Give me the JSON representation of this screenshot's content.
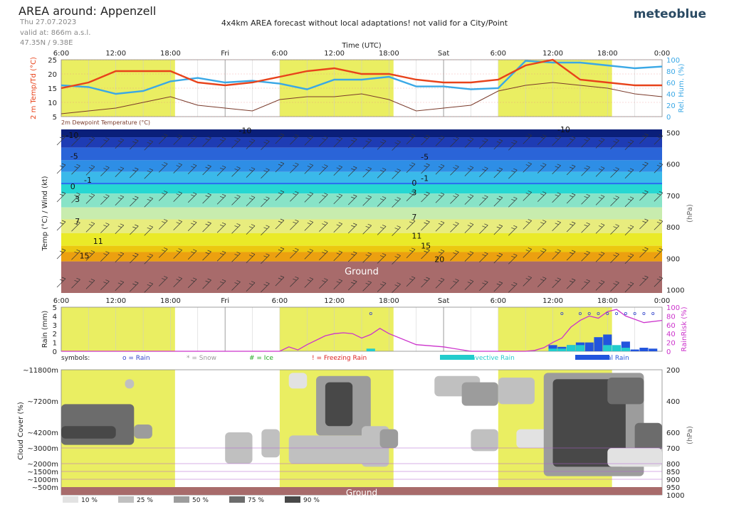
{
  "header": {
    "title": "AREA around: Appenzell",
    "date": "Thu 27.07.2023",
    "valid": "valid at: 866m a.s.l.",
    "coords": "47.35N / 9.38E",
    "notice": "4x4km AREA forecast without local adaptations! not valid for a City/Point",
    "logo": "meteoblue"
  },
  "time_axis": {
    "title": "Time (UTC)",
    "labels": [
      "6:00",
      "12:00",
      "18:00",
      "Fri",
      "6:00",
      "12:00",
      "18:00",
      "Sat",
      "6:00",
      "12:00",
      "18:00",
      "0:00"
    ],
    "start_hour": 6,
    "end_hour": 72,
    "day_labels": [
      {
        "h": 24,
        "t": "Fri"
      },
      {
        "h": 48,
        "t": "Sat"
      }
    ],
    "yellow_bands": [
      [
        6,
        18.5
      ],
      [
        30,
        42.5
      ],
      [
        54,
        66.5
      ]
    ]
  },
  "colors": {
    "band": "#eaee62",
    "temp": "#e8421a",
    "hum": "#3aa8e6",
    "dew": "#7a3a2a",
    "rainrisk": "#cc33cc",
    "ground": "#a86b6b",
    "rain": "#2255dd",
    "conv": "#22cccc"
  },
  "chart_data": [
    {
      "type": "line",
      "title": "",
      "x": [
        6,
        9,
        12,
        15,
        18,
        21,
        24,
        27,
        30,
        33,
        36,
        39,
        42,
        45,
        48,
        51,
        54,
        57,
        60,
        63,
        66,
        69,
        72
      ],
      "ylabel_left": "2 m Temp/Td (°C)",
      "ylabel_right": "Rel. Hum. (%)",
      "ylim_left": [
        5,
        25
      ],
      "yticks_left": [
        5,
        10,
        15,
        20,
        25
      ],
      "ylim_right": [
        0,
        100
      ],
      "yticks_right": [
        0,
        20,
        40,
        60,
        80,
        100
      ],
      "series": [
        {
          "name": "2 m Temp",
          "axis": "left",
          "values": [
            15,
            17,
            21,
            21,
            21,
            17,
            16,
            17,
            19,
            21,
            22,
            20,
            20,
            18,
            17,
            17,
            18,
            23,
            25,
            18,
            17,
            16,
            16
          ]
        },
        {
          "name": "2m Dewpoint Temperature (°C)",
          "axis": "left",
          "values": [
            6,
            7,
            8,
            10,
            12,
            9,
            8,
            7,
            11,
            12,
            12,
            13,
            11,
            7,
            8,
            9,
            14,
            16,
            17,
            16,
            15,
            13,
            12
          ]
        },
        {
          "name": "Rel. Hum.",
          "axis": "right",
          "values": [
            55,
            52,
            40,
            45,
            62,
            68,
            60,
            63,
            58,
            48,
            65,
            65,
            70,
            53,
            53,
            48,
            50,
            98,
            95,
            95,
            90,
            85,
            88
          ]
        }
      ],
      "bottom_label": "2m Dewpoint Temperature (°C)"
    },
    {
      "type": "area",
      "title": "",
      "ylabel_left": "Temp (°C) / Wind (kt)",
      "ylabel_right": "(hPa)",
      "pressure_ticks": [
        500,
        600,
        700,
        800,
        900,
        1000
      ],
      "ground_label": "Ground",
      "isotherm_labels": [
        {
          "t": "-10",
          "h": 6.5,
          "p": 508
        },
        {
          "t": "-5",
          "h": 7,
          "p": 575
        },
        {
          "t": "-1",
          "h": 8.5,
          "p": 650
        },
        {
          "t": "0",
          "h": 7,
          "p": 671
        },
        {
          "t": "3",
          "h": 7.5,
          "p": 712
        },
        {
          "t": "7",
          "h": 7.5,
          "p": 782
        },
        {
          "t": "11",
          "h": 9.5,
          "p": 845
        },
        {
          "t": "15",
          "h": 8,
          "p": 891
        },
        {
          "t": "-10",
          "h": 25.5,
          "p": 493
        },
        {
          "t": "-5",
          "h": 45.5,
          "p": 577
        },
        {
          "t": "-1",
          "h": 45.5,
          "p": 645
        },
        {
          "t": "0",
          "h": 44.5,
          "p": 659
        },
        {
          "t": "3",
          "h": 44.5,
          "p": 690
        },
        {
          "t": "7",
          "h": 44.5,
          "p": 768
        },
        {
          "t": "11",
          "h": 44.5,
          "p": 828
        },
        {
          "t": "15",
          "h": 45.5,
          "p": 860
        },
        {
          "t": "20",
          "h": 47,
          "p": 903
        },
        {
          "t": "-10",
          "h": 60.5,
          "p": 490
        }
      ]
    },
    {
      "type": "bar",
      "title": "",
      "ylabel_left": "Rain (mm)",
      "ylabel_right": "RainRisk (%)",
      "ylim_left": [
        0,
        5
      ],
      "yticks_left": [
        0,
        1,
        2,
        3,
        4,
        5
      ],
      "ylim_right": [
        0,
        100
      ],
      "yticks_right": [
        0,
        20,
        40,
        60,
        80,
        100
      ],
      "rain_risk": {
        "name": "RainRisk",
        "x": [
          6,
          9,
          12,
          15,
          18,
          21,
          24,
          27,
          30,
          31,
          32,
          33,
          35,
          36,
          37,
          38,
          39,
          40,
          41,
          42,
          45,
          48,
          51,
          54,
          57,
          58,
          59,
          60,
          61,
          62,
          63,
          64,
          65,
          66,
          67,
          68,
          70,
          72
        ],
        "values": [
          0,
          0,
          0,
          0,
          0,
          0,
          0,
          0,
          0,
          10,
          3,
          15,
          35,
          40,
          42,
          40,
          30,
          38,
          52,
          40,
          15,
          10,
          0,
          0,
          0,
          2,
          8,
          20,
          30,
          55,
          70,
          80,
          75,
          90,
          95,
          80,
          65,
          70
        ]
      },
      "total_rain": {
        "name": "Total Rain",
        "x": [
          60,
          61,
          62,
          63,
          64,
          65,
          66,
          67,
          68,
          69,
          70,
          71
        ],
        "values": [
          0.7,
          0.5,
          0.7,
          1.0,
          1.0,
          1.6,
          1.9,
          0.4,
          1.1,
          0.2,
          0.4,
          0.3
        ]
      },
      "convective_rain": {
        "name": "Convective Rain",
        "x": [
          40,
          60,
          61,
          62,
          63,
          66,
          67,
          68
        ],
        "values": [
          0.3,
          0.3,
          0.3,
          0.7,
          0.7,
          0.7,
          0.7,
          0.4
        ]
      },
      "rain_symbol_hours": [
        40,
        61,
        63,
        64,
        65,
        66,
        67,
        68,
        69,
        70,
        71
      ]
    },
    {
      "type": "heatmap",
      "title": "",
      "ylabel_left": "Cloud Cover (%)",
      "ylabel_right": "(hPa)",
      "altitude_ticks": [
        {
          "t": "~11800m",
          "p": 200
        },
        {
          "t": "~7200m",
          "p": 400
        },
        {
          "t": "~4200m",
          "p": 600
        },
        {
          "t": "~3000m",
          "p": 700
        },
        {
          "t": "~2000m",
          "p": 800
        },
        {
          "t": "~1500m",
          "p": 850
        },
        {
          "t": "~1000m",
          "p": 900
        },
        {
          "t": "~500m",
          "p": 950
        }
      ],
      "pressure_ticks": [
        200,
        400,
        600,
        700,
        800,
        850,
        900,
        950,
        1000
      ],
      "ground_label": "Ground",
      "legend": [
        {
          "label": "10 %",
          "color": "#e2e2e2"
        },
        {
          "label": "25 %",
          "color": "#c0c0c0"
        },
        {
          "label": "50 %",
          "color": "#9c9c9c"
        },
        {
          "label": "75 %",
          "color": "#6c6c6c"
        },
        {
          "label": "90 %",
          "color": "#484848"
        }
      ],
      "cells": [
        {
          "h1": 6,
          "h2": 14,
          "p1": 420,
          "p2": 680,
          "v": 4
        },
        {
          "h1": 6,
          "h2": 12,
          "p1": 560,
          "p2": 640,
          "v": 5
        },
        {
          "h1": 14,
          "h2": 16,
          "p1": 550,
          "p2": 640,
          "v": 3
        },
        {
          "h1": 13,
          "h2": 14,
          "p1": 260,
          "p2": 320,
          "v": 2
        },
        {
          "h1": 24,
          "h2": 27,
          "p1": 600,
          "p2": 800,
          "v": 2
        },
        {
          "h1": 28,
          "h2": 30,
          "p1": 580,
          "p2": 760,
          "v": 2
        },
        {
          "h1": 31,
          "h2": 40,
          "p1": 620,
          "p2": 800,
          "v": 2
        },
        {
          "h1": 34,
          "h2": 40,
          "p1": 240,
          "p2": 620,
          "v": 3
        },
        {
          "h1": 35,
          "h2": 38,
          "p1": 280,
          "p2": 560,
          "v": 5
        },
        {
          "h1": 39,
          "h2": 42,
          "p1": 560,
          "p2": 820,
          "v": 2
        },
        {
          "h1": 41,
          "h2": 43,
          "p1": 580,
          "p2": 700,
          "v": 3
        },
        {
          "h1": 31,
          "h2": 33,
          "p1": 220,
          "p2": 320,
          "v": 1
        },
        {
          "h1": 47,
          "h2": 52,
          "p1": 240,
          "p2": 370,
          "v": 2
        },
        {
          "h1": 50,
          "h2": 54,
          "p1": 280,
          "p2": 430,
          "v": 3
        },
        {
          "h1": 51,
          "h2": 54,
          "p1": 580,
          "p2": 720,
          "v": 2
        },
        {
          "h1": 54,
          "h2": 58,
          "p1": 250,
          "p2": 420,
          "v": 2
        },
        {
          "h1": 56,
          "h2": 60,
          "p1": 580,
          "p2": 700,
          "v": 1
        },
        {
          "h1": 59,
          "h2": 70,
          "p1": 220,
          "p2": 880,
          "v": 3
        },
        {
          "h1": 60,
          "h2": 68,
          "p1": 260,
          "p2": 820,
          "v": 5
        },
        {
          "h1": 66,
          "h2": 70,
          "p1": 250,
          "p2": 420,
          "v": 4
        },
        {
          "h1": 69,
          "h2": 72,
          "p1": 540,
          "p2": 720,
          "v": 4
        },
        {
          "h1": 66,
          "h2": 72,
          "p1": 700,
          "p2": 820,
          "v": 1
        }
      ]
    }
  ],
  "legend_row": {
    "prefix": "symbols:",
    "items": [
      {
        "text": "o = Rain",
        "color": "#3344cc"
      },
      {
        "text": "* = Snow",
        "color": "#999999"
      },
      {
        "text": "# = Ice",
        "color": "#22aa22"
      },
      {
        "text": "! = Freezing Rain",
        "color": "#dd2222"
      },
      {
        "text": "Convective Rain",
        "color": "#22cccc"
      },
      {
        "text": "Total Rain",
        "color": "#2255dd"
      }
    ]
  }
}
